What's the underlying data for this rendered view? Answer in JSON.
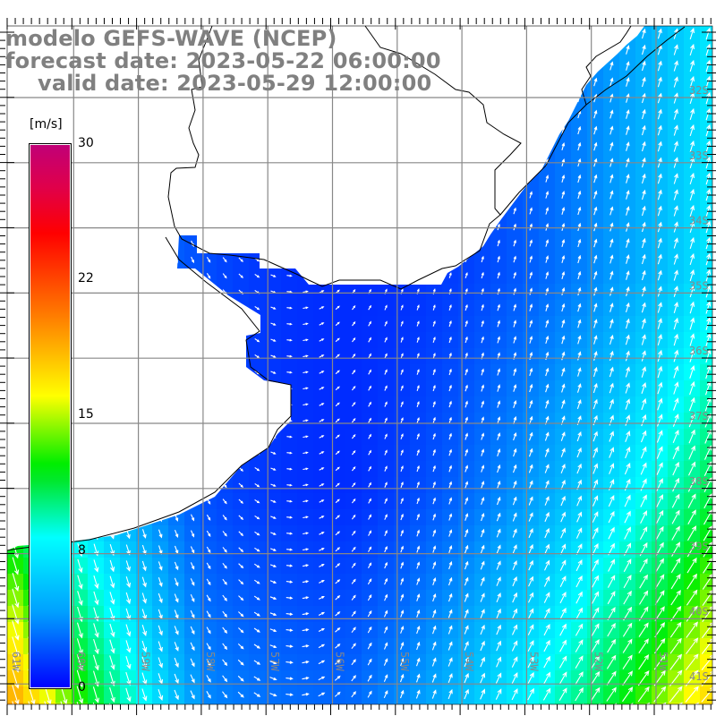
{
  "title": {
    "model": "modelo GEFS-WAVE (NCEP)",
    "forecast": "forecast date: 2023-05-22 06:00:00",
    "valid": "valid date: 2023-05-29 12:00:00"
  },
  "legend": {
    "unit": "[m/s]",
    "ticks": [
      "30",
      "22",
      "15",
      "8",
      "0"
    ],
    "colors": {
      "min": "#0000ff",
      "cyan": "#00ffff",
      "green": "#00ee00",
      "yellow": "#ffff00",
      "red": "#ff0000",
      "max": "#c00078"
    }
  },
  "axes": {
    "longitudes": [
      "61W",
      "60W",
      "59W",
      "58W",
      "57W",
      "56W",
      "55W",
      "54W",
      "53W",
      "52W",
      "51W"
    ],
    "latitudes": [
      "32S",
      "33S",
      "34S",
      "35S",
      "36S",
      "37S",
      "38S",
      "39S",
      "40S",
      "41S"
    ]
  },
  "colors": {
    "grid": "#888888",
    "land": "#ffffff",
    "coast": "#000000",
    "arrow": "#ffffff",
    "label": "#808080"
  }
}
